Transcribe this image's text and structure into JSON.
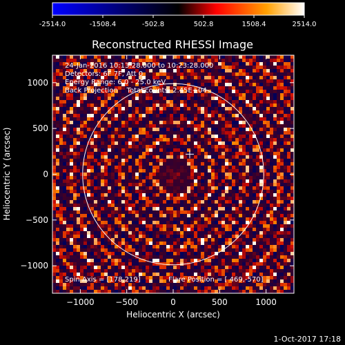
{
  "chart_data": {
    "type": "heatmap",
    "title": "Reconstructed RHESSI Image",
    "xlabel": "Heliocentric X (arcsec)",
    "ylabel": "Heliocentric Y (arcsec)",
    "xlim": [
      -1300,
      1300
    ],
    "ylim": [
      -1300,
      1300
    ],
    "x_ticks": [
      -1000,
      -500,
      0,
      500,
      1000
    ],
    "y_ticks": [
      -1000,
      -500,
      0,
      500,
      1000
    ],
    "colorbar": {
      "min": -2514.0,
      "max": 2514.0,
      "tick_labels": [
        "-2514.0",
        "-1508.4",
        "-502.8",
        "502.8",
        "1508.4",
        "2514.0"
      ],
      "colors": [
        "#0000ff",
        "#000000",
        "#ff0000",
        "#ffa000",
        "#ffffff"
      ]
    },
    "annotations": [
      "24-Jan-2016 10:13:28.000 to 10:23:28.000",
      "Detectors: 6F 7F, Att 0",
      "Energy Range: 6.0 - 25.0 keV",
      "Back Projection    Total counts: 2.45E+04"
    ],
    "spin_axis": "Spin Axis = [178,219]",
    "flare_position": "Flare Position = [ 469,-570]",
    "marker": {
      "x": 178,
      "y": 219
    },
    "solar_limb_radius": 975
  },
  "footer": {
    "timestamp": "1-Oct-2017 17:18"
  }
}
